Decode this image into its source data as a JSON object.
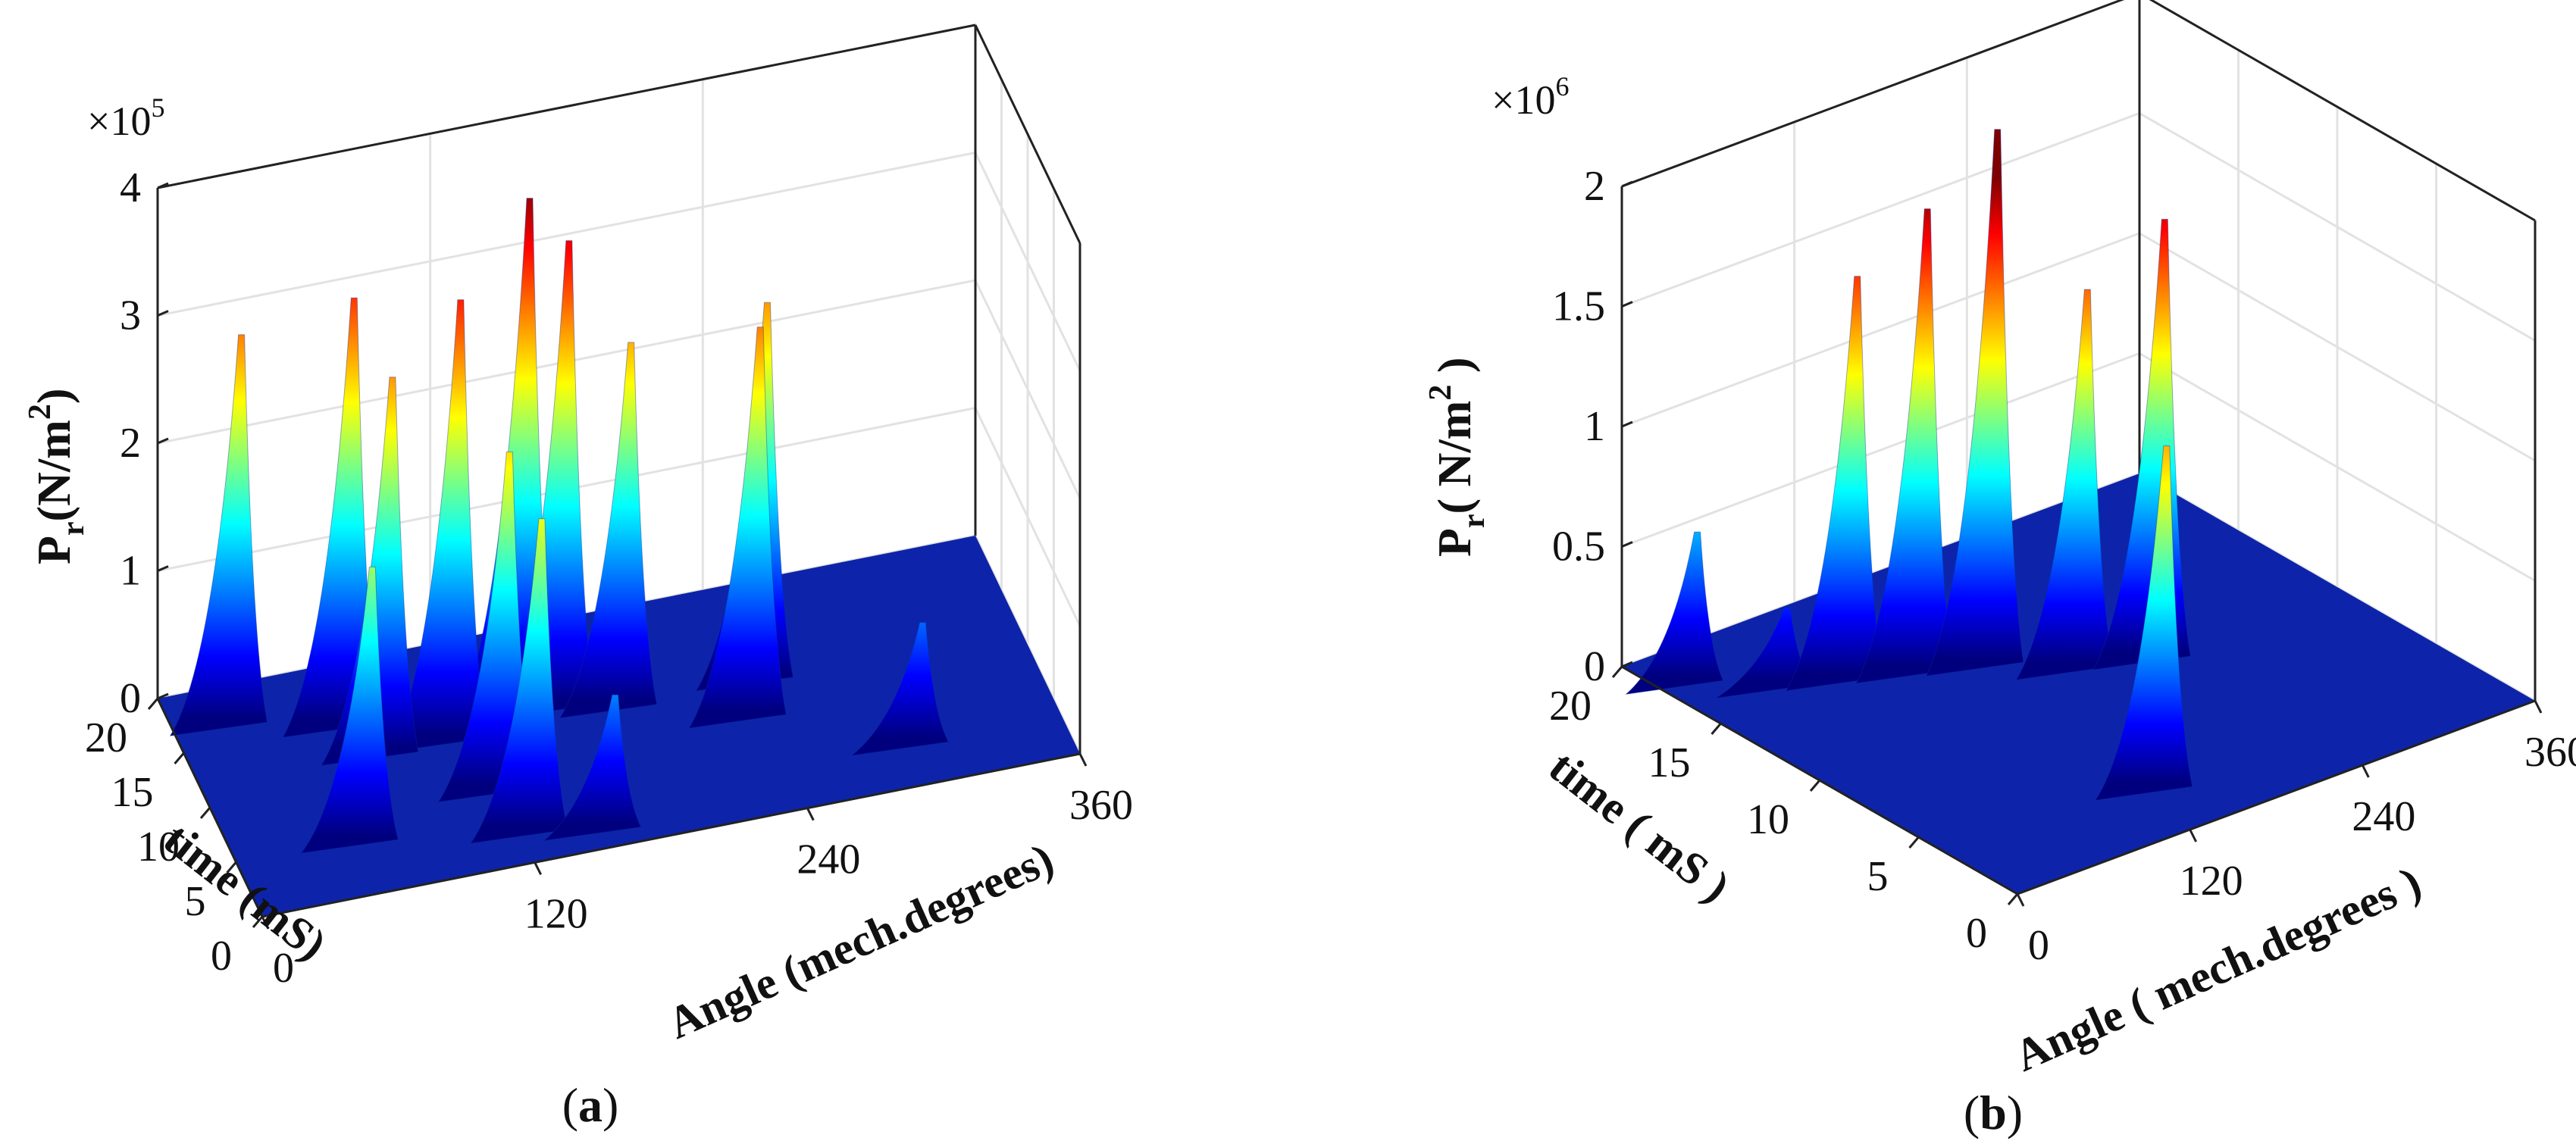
{
  "chart_data": [
    {
      "type": "surface3d",
      "panel_label": "(a)",
      "scale_prefix": "×10",
      "scale_exponent": "5",
      "zlabel_base": "P",
      "zlabel_sub": "r",
      "zlabel_unit": "(N/m",
      "zlabel_sup": "2",
      "zlabel_close": ")",
      "xlabel": "Angle (mech.degrees)",
      "ylabel": "time (mS)",
      "xticks": [
        {
          "v": 0,
          "label": "0"
        },
        {
          "v": 120,
          "label": "120"
        },
        {
          "v": 240,
          "label": "240"
        },
        {
          "v": 360,
          "label": "360"
        }
      ],
      "yticks": [
        {
          "v": 0,
          "label": "0"
        },
        {
          "v": 5,
          "label": "5"
        },
        {
          "v": 10,
          "label": "10"
        },
        {
          "v": 15,
          "label": "15"
        },
        {
          "v": 20,
          "label": "20"
        }
      ],
      "zticks": [
        {
          "v": 0,
          "label": "0"
        },
        {
          "v": 1,
          "label": "1"
        },
        {
          "v": 2,
          "label": "2"
        },
        {
          "v": 3,
          "label": "3"
        },
        {
          "v": 4,
          "label": "4"
        }
      ],
      "xlim": [
        0,
        360
      ],
      "ylim": [
        0,
        20
      ],
      "zlim": [
        0,
        4
      ],
      "colormap": "jet",
      "peaks": [
        {
          "angle": 30,
          "time": 17,
          "value": 3.0
        },
        {
          "angle": 60,
          "time": 5,
          "value": 2.1
        },
        {
          "angle": 75,
          "time": 15,
          "value": 3.3
        },
        {
          "angle": 85,
          "time": 12,
          "value": 2.9
        },
        {
          "angle": 115,
          "time": 12,
          "value": 3.4
        },
        {
          "angle": 130,
          "time": 3,
          "value": 2.4
        },
        {
          "angle": 125,
          "time": 7,
          "value": 2.6
        },
        {
          "angle": 150,
          "time": 14,
          "value": 3.9
        },
        {
          "angle": 165,
          "time": 13,
          "value": 3.6
        },
        {
          "angle": 190,
          "time": 12,
          "value": 2.8
        },
        {
          "angle": 160,
          "time": 2,
          "value": 1.0
        },
        {
          "angle": 240,
          "time": 9,
          "value": 3.0
        },
        {
          "angle": 250,
          "time": 12,
          "value": 2.9
        },
        {
          "angle": 300,
          "time": 4,
          "value": 0.9
        }
      ]
    },
    {
      "type": "surface3d",
      "panel_label": "(b)",
      "scale_prefix": "×10",
      "scale_exponent": "6",
      "zlabel_base": "P",
      "zlabel_sub": "r",
      "zlabel_unit": "( N/m",
      "zlabel_sup": "2",
      "zlabel_close": " )",
      "xlabel": "Angle ( mech.degrees )",
      "ylabel": "time ( mS )",
      "xticks": [
        {
          "v": 0,
          "label": "0"
        },
        {
          "v": 120,
          "label": "120"
        },
        {
          "v": 240,
          "label": "240"
        },
        {
          "v": 360,
          "label": "360"
        }
      ],
      "yticks": [
        {
          "v": 0,
          "label": "0"
        },
        {
          "v": 5,
          "label": "5"
        },
        {
          "v": 10,
          "label": "10"
        },
        {
          "v": 15,
          "label": "15"
        },
        {
          "v": 20,
          "label": "20"
        }
      ],
      "zticks": [
        {
          "v": 0,
          "label": "0"
        },
        {
          "v": 0.5,
          "label": "0.5"
        },
        {
          "v": 1,
          "label": "1"
        },
        {
          "v": 1.5,
          "label": "1.5"
        },
        {
          "v": 2,
          "label": "2"
        }
      ],
      "xlim": [
        0,
        360
      ],
      "ylim": [
        0,
        20
      ],
      "zlim": [
        0,
        2
      ],
      "colormap": "jet",
      "peaks": [
        {
          "angle": 25,
          "time": 18,
          "value": 0.6
        },
        {
          "angle": 60,
          "time": 16,
          "value": 0.3
        },
        {
          "angle": 95,
          "time": 15,
          "value": 1.65
        },
        {
          "angle": 130,
          "time": 14,
          "value": 1.9
        },
        {
          "angle": 165,
          "time": 13,
          "value": 2.2
        },
        {
          "angle": 200,
          "time": 11,
          "value": 1.55
        },
        {
          "angle": 240,
          "time": 10,
          "value": 1.8
        },
        {
          "angle": 145,
          "time": 3,
          "value": 1.4
        }
      ]
    }
  ]
}
